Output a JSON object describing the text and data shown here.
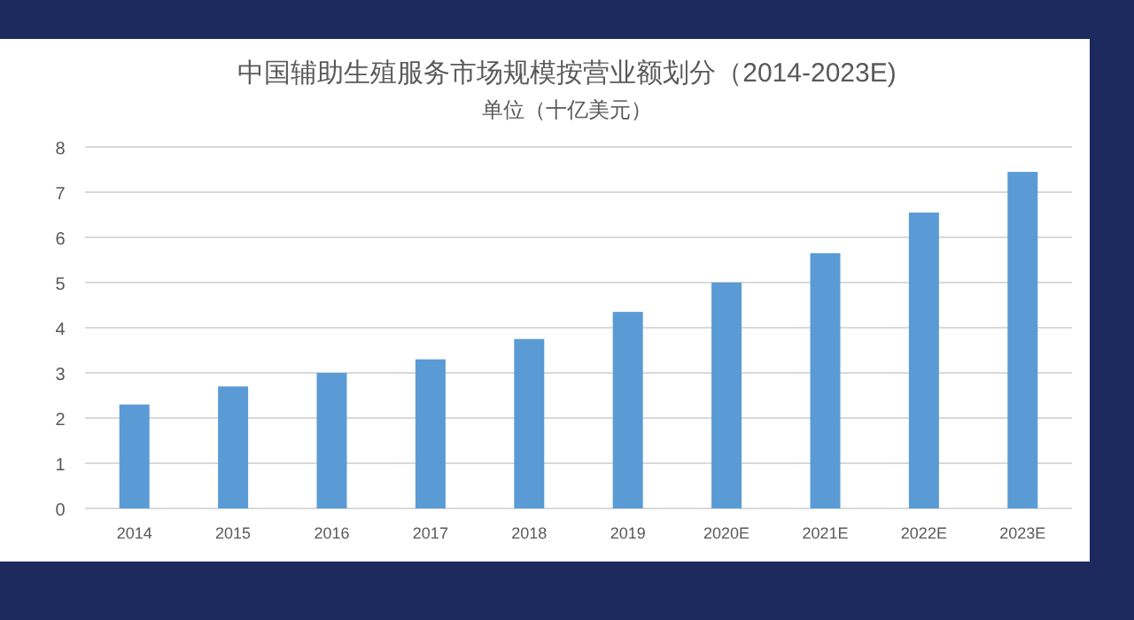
{
  "chart_data": {
    "type": "bar",
    "title": "中国辅助生殖服务市场规模按营业额划分（2014-2023E)",
    "subtitle": "单位（十亿美元）",
    "categories": [
      "2014",
      "2015",
      "2016",
      "2017",
      "2018",
      "2019",
      "2020E",
      "2021E",
      "2022E",
      "2023E"
    ],
    "values": [
      2.3,
      2.7,
      3.0,
      3.3,
      3.75,
      4.35,
      5.0,
      5.65,
      6.55,
      7.45
    ],
    "color": "#5b9bd5",
    "ylim": [
      0,
      8
    ],
    "yticks": [
      0,
      1,
      2,
      3,
      4,
      5,
      6,
      7,
      8
    ],
    "grid": "y"
  }
}
